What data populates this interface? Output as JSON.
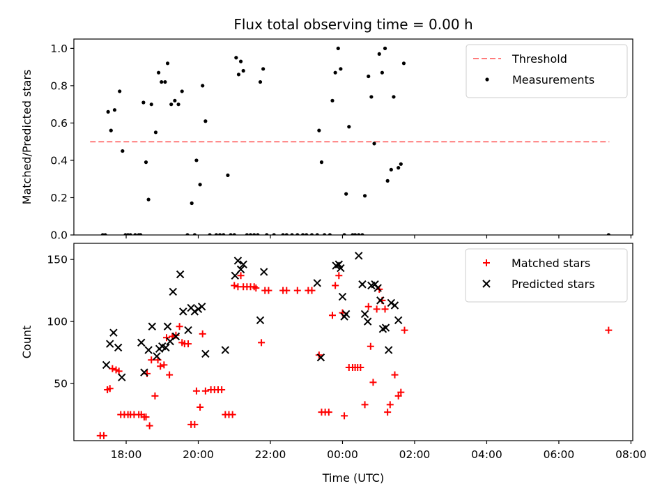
{
  "title": "Flux total observing time = 0.00 h",
  "chart_data": [
    {
      "type": "scatter",
      "ylabel": "Matched/Predicted stars",
      "xlim": [
        16.55,
        32.05
      ],
      "ylim": [
        0,
        1.05
      ],
      "yticks": [
        0.0,
        0.2,
        0.4,
        0.6,
        0.8,
        1.0
      ],
      "ytick_labels": [
        "0.0",
        "0.2",
        "0.4",
        "0.6",
        "0.8",
        "1.0"
      ],
      "legend_position": "top-right",
      "threshold": {
        "name": "Threshold",
        "value": 0.5,
        "x_range": [
          17.0,
          31.4
        ],
        "color": "#ff7b7b"
      },
      "series": [
        {
          "name": "Measurements",
          "color": "#000000",
          "points": [
            [
              17.35,
              0
            ],
            [
              17.42,
              0
            ],
            [
              17.5,
              0.66
            ],
            [
              17.58,
              0.56
            ],
            [
              17.68,
              0.67
            ],
            [
              17.82,
              0.77
            ],
            [
              17.9,
              0.45
            ],
            [
              17.98,
              0
            ],
            [
              18.05,
              0
            ],
            [
              18.12,
              0
            ],
            [
              18.25,
              0
            ],
            [
              18.35,
              0
            ],
            [
              18.4,
              0
            ],
            [
              18.48,
              0.71
            ],
            [
              18.55,
              0.39
            ],
            [
              18.62,
              0.19
            ],
            [
              18.7,
              0.7
            ],
            [
              18.82,
              0.55
            ],
            [
              18.9,
              0.87
            ],
            [
              18.98,
              0.82
            ],
            [
              19.08,
              0.82
            ],
            [
              19.15,
              0.92
            ],
            [
              19.25,
              0.7
            ],
            [
              19.35,
              0.72
            ],
            [
              19.45,
              0.7
            ],
            [
              19.55,
              0.77
            ],
            [
              19.7,
              0
            ],
            [
              19.82,
              0.17
            ],
            [
              19.9,
              0
            ],
            [
              19.95,
              0.4
            ],
            [
              20.05,
              0.27
            ],
            [
              20.12,
              0.8
            ],
            [
              20.2,
              0.61
            ],
            [
              20.32,
              0
            ],
            [
              20.5,
              0
            ],
            [
              20.6,
              0
            ],
            [
              20.7,
              0
            ],
            [
              20.82,
              0.32
            ],
            [
              20.9,
              0
            ],
            [
              21.0,
              0
            ],
            [
              21.05,
              0.95
            ],
            [
              21.12,
              0.86
            ],
            [
              21.18,
              0.93
            ],
            [
              21.25,
              0.88
            ],
            [
              21.35,
              0
            ],
            [
              21.45,
              0
            ],
            [
              21.55,
              0
            ],
            [
              21.65,
              0
            ],
            [
              21.72,
              0.82
            ],
            [
              21.8,
              0.89
            ],
            [
              21.9,
              0
            ],
            [
              22.1,
              0
            ],
            [
              22.35,
              0
            ],
            [
              22.45,
              0
            ],
            [
              22.6,
              0
            ],
            [
              22.75,
              0
            ],
            [
              22.9,
              0
            ],
            [
              23.0,
              0
            ],
            [
              23.15,
              0
            ],
            [
              23.3,
              0
            ],
            [
              23.35,
              0.56
            ],
            [
              23.42,
              0.39
            ],
            [
              23.5,
              0
            ],
            [
              23.65,
              0
            ],
            [
              23.72,
              0.72
            ],
            [
              23.8,
              0.87
            ],
            [
              23.88,
              1.0
            ],
            [
              23.95,
              0.89
            ],
            [
              24.05,
              0
            ],
            [
              24.1,
              0.22
            ],
            [
              24.18,
              0.58
            ],
            [
              24.28,
              0
            ],
            [
              24.35,
              0
            ],
            [
              24.45,
              0
            ],
            [
              24.55,
              0
            ],
            [
              24.62,
              0.21
            ],
            [
              24.72,
              0.85
            ],
            [
              24.8,
              0.74
            ],
            [
              24.88,
              0.49
            ],
            [
              25.02,
              0.97
            ],
            [
              25.1,
              0.87
            ],
            [
              25.18,
              1.0
            ],
            [
              25.25,
              0.29
            ],
            [
              25.35,
              0.35
            ],
            [
              25.42,
              0.74
            ],
            [
              25.55,
              0.36
            ],
            [
              25.62,
              0.38
            ],
            [
              25.7,
              0.92
            ],
            [
              31.38,
              0
            ]
          ]
        }
      ]
    },
    {
      "type": "scatter",
      "xlabel": "Time (UTC)",
      "ylabel": "Count",
      "xlim": [
        16.55,
        32.05
      ],
      "ylim": [
        4,
        163
      ],
      "x_tick_values": [
        18,
        20,
        22,
        24,
        26,
        28,
        30,
        32
      ],
      "xtick_labels": [
        "18:00",
        "20:00",
        "22:00",
        "00:00",
        "02:00",
        "04:00",
        "06:00",
        "08:00"
      ],
      "yticks": [
        50,
        100,
        150
      ],
      "ytick_labels": [
        "50",
        "100",
        "150"
      ],
      "legend_position": "top-right",
      "series": [
        {
          "name": "Matched stars",
          "marker": "plus",
          "color": "#ff0000",
          "points": [
            [
              17.28,
              8
            ],
            [
              17.38,
              8
            ],
            [
              17.48,
              45
            ],
            [
              17.55,
              46
            ],
            [
              17.62,
              62
            ],
            [
              17.72,
              61
            ],
            [
              17.8,
              60
            ],
            [
              17.85,
              25
            ],
            [
              17.95,
              25
            ],
            [
              18.05,
              25
            ],
            [
              18.12,
              25
            ],
            [
              18.22,
              25
            ],
            [
              18.35,
              25
            ],
            [
              18.42,
              25
            ],
            [
              18.5,
              23
            ],
            [
              18.55,
              23
            ],
            [
              18.58,
              58
            ],
            [
              18.65,
              16
            ],
            [
              18.7,
              69
            ],
            [
              18.8,
              40
            ],
            [
              18.88,
              69
            ],
            [
              18.95,
              64
            ],
            [
              19.05,
              65
            ],
            [
              19.12,
              87
            ],
            [
              19.2,
              57
            ],
            [
              19.28,
              88
            ],
            [
              19.38,
              89
            ],
            [
              19.48,
              96
            ],
            [
              19.55,
              83
            ],
            [
              19.62,
              82
            ],
            [
              19.72,
              82
            ],
            [
              19.8,
              17
            ],
            [
              19.9,
              17
            ],
            [
              19.95,
              44
            ],
            [
              20.05,
              31
            ],
            [
              20.12,
              90
            ],
            [
              20.2,
              44
            ],
            [
              20.35,
              45
            ],
            [
              20.45,
              45
            ],
            [
              20.55,
              45
            ],
            [
              20.65,
              45
            ],
            [
              20.75,
              25
            ],
            [
              20.85,
              25
            ],
            [
              20.95,
              25
            ],
            [
              21.0,
              129
            ],
            [
              21.1,
              128
            ],
            [
              21.18,
              137
            ],
            [
              21.25,
              128
            ],
            [
              21.35,
              128
            ],
            [
              21.45,
              128
            ],
            [
              21.55,
              128
            ],
            [
              21.6,
              127
            ],
            [
              21.75,
              83
            ],
            [
              21.85,
              125
            ],
            [
              21.95,
              125
            ],
            [
              22.35,
              125
            ],
            [
              22.45,
              125
            ],
            [
              22.75,
              125
            ],
            [
              23.05,
              125
            ],
            [
              23.15,
              125
            ],
            [
              23.35,
              73
            ],
            [
              23.42,
              27
            ],
            [
              23.52,
              27
            ],
            [
              23.62,
              27
            ],
            [
              23.72,
              105
            ],
            [
              23.8,
              129
            ],
            [
              23.9,
              137
            ],
            [
              24.0,
              107
            ],
            [
              24.05,
              24
            ],
            [
              24.18,
              63
            ],
            [
              24.28,
              63
            ],
            [
              24.35,
              63
            ],
            [
              24.42,
              63
            ],
            [
              24.5,
              63
            ],
            [
              24.62,
              33
            ],
            [
              24.72,
              112
            ],
            [
              24.78,
              80
            ],
            [
              24.85,
              51
            ],
            [
              24.95,
              110
            ],
            [
              25.02,
              126
            ],
            [
              25.1,
              117
            ],
            [
              25.18,
              110
            ],
            [
              25.25,
              27
            ],
            [
              25.32,
              33
            ],
            [
              25.45,
              57
            ],
            [
              25.55,
              40
            ],
            [
              25.62,
              43
            ],
            [
              25.72,
              93
            ],
            [
              31.38,
              93
            ]
          ]
        },
        {
          "name": "Predicted stars",
          "marker": "x",
          "color": "#000000",
          "points": [
            [
              17.45,
              65
            ],
            [
              17.55,
              82
            ],
            [
              17.65,
              91
            ],
            [
              17.78,
              79
            ],
            [
              17.88,
              55
            ],
            [
              18.42,
              83
            ],
            [
              18.5,
              59
            ],
            [
              18.62,
              77
            ],
            [
              18.72,
              96
            ],
            [
              18.85,
              72
            ],
            [
              18.92,
              78
            ],
            [
              19.0,
              80
            ],
            [
              19.1,
              79
            ],
            [
              19.15,
              96
            ],
            [
              19.22,
              84
            ],
            [
              19.3,
              124
            ],
            [
              19.38,
              88
            ],
            [
              19.5,
              138
            ],
            [
              19.58,
              108
            ],
            [
              19.72,
              93
            ],
            [
              19.8,
              111
            ],
            [
              19.9,
              108
            ],
            [
              20.0,
              110
            ],
            [
              20.1,
              112
            ],
            [
              20.2,
              74
            ],
            [
              20.75,
              77
            ],
            [
              21.02,
              137
            ],
            [
              21.1,
              149
            ],
            [
              21.18,
              142
            ],
            [
              21.25,
              146
            ],
            [
              21.72,
              101
            ],
            [
              21.82,
              140
            ],
            [
              23.3,
              131
            ],
            [
              23.4,
              71
            ],
            [
              23.82,
              145
            ],
            [
              23.9,
              146
            ],
            [
              23.95,
              143
            ],
            [
              24.0,
              120
            ],
            [
              24.05,
              104
            ],
            [
              24.1,
              106
            ],
            [
              24.45,
              153
            ],
            [
              24.55,
              130
            ],
            [
              24.62,
              106
            ],
            [
              24.7,
              100
            ],
            [
              24.8,
              129
            ],
            [
              24.9,
              130
            ],
            [
              24.98,
              127
            ],
            [
              25.05,
              117
            ],
            [
              25.12,
              94
            ],
            [
              25.2,
              95
            ],
            [
              25.28,
              77
            ],
            [
              25.35,
              115
            ],
            [
              25.45,
              113
            ],
            [
              25.55,
              101
            ]
          ]
        }
      ]
    }
  ]
}
